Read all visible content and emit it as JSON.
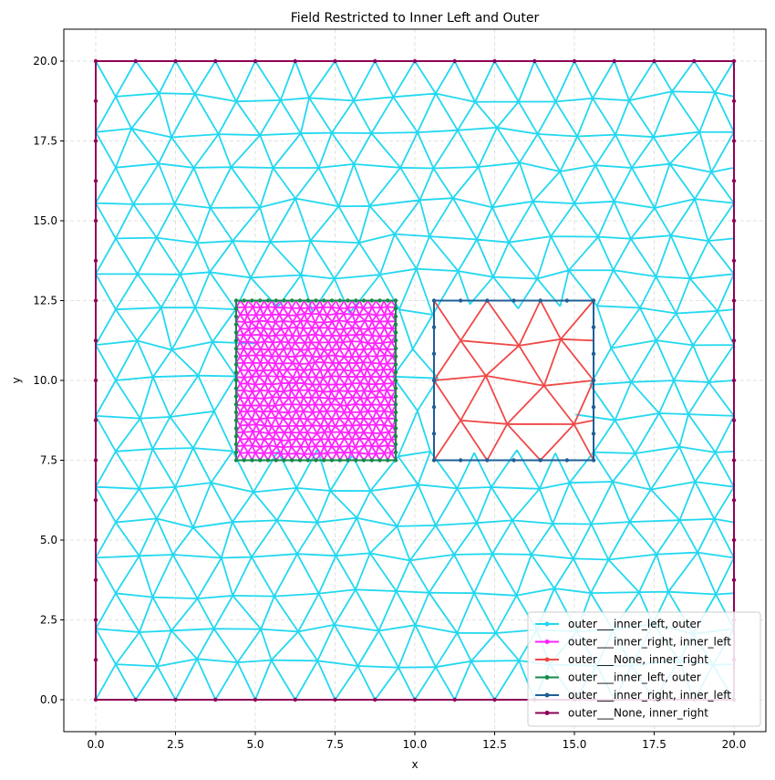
{
  "chart_data": {
    "type": "line",
    "title": "Field Restricted to Inner Left and Outer",
    "xlabel": "x",
    "ylabel": "y",
    "xlim": [
      -1,
      21
    ],
    "ylim": [
      -1,
      21
    ],
    "xticks": [
      0.0,
      2.5,
      5.0,
      7.5,
      10.0,
      12.5,
      15.0,
      17.5,
      20.0
    ],
    "yticks": [
      0.0,
      2.5,
      5.0,
      7.5,
      10.0,
      12.5,
      15.0,
      17.5,
      20.0
    ],
    "xtick_labels": [
      "0.0",
      "2.5",
      "5.0",
      "7.5",
      "10.0",
      "12.5",
      "15.0",
      "17.5",
      "20.0"
    ],
    "ytick_labels": [
      "0.0",
      "2.5",
      "5.0",
      "7.5",
      "10.0",
      "12.5",
      "15.0",
      "17.5",
      "20.0"
    ],
    "grid": true,
    "legend_position": "lower-right",
    "regions": {
      "outer": {
        "x": [
          0,
          20
        ],
        "y": [
          0,
          20
        ],
        "mesh_spacing": 1.25
      },
      "inner_left": {
        "x": [
          4.4,
          9.4
        ],
        "y": [
          7.5,
          12.5
        ],
        "mesh_spacing": 0.25
      },
      "inner_right": {
        "x": [
          10.6,
          15.6
        ],
        "y": [
          7.5,
          12.5
        ],
        "mesh_spacing": 1.6
      }
    },
    "series": [
      {
        "name": "outer___inner_left, outer",
        "color": "#22d8f0",
        "kind": "mesh",
        "region": "outer"
      },
      {
        "name": "outer___inner_right, inner_left",
        "color": "#ff22ff",
        "kind": "mesh",
        "region": "inner_left"
      },
      {
        "name": "outer___None, inner_right",
        "color": "#f04848",
        "kind": "mesh",
        "region": "inner_right"
      },
      {
        "name": "outer___inner_left, outer",
        "color": "#148a4a",
        "kind": "boundary",
        "region": "inner_left"
      },
      {
        "name": "outer___inner_right, inner_left",
        "color": "#1f5f96",
        "kind": "boundary",
        "region": "inner_right"
      },
      {
        "name": "outer___None, inner_right",
        "color": "#8e0058",
        "kind": "boundary",
        "region": "outer"
      }
    ]
  }
}
